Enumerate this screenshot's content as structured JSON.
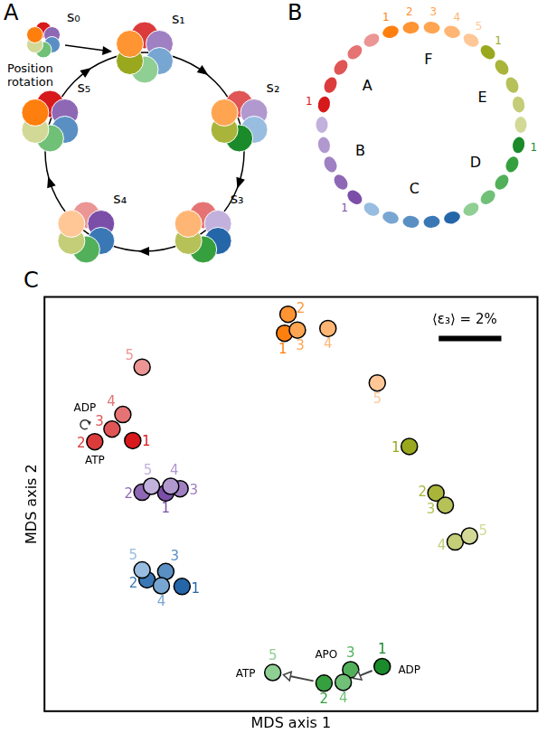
{
  "panels": {
    "A": {
      "label": "A",
      "states": [
        "s₀",
        "s₁",
        "s₂",
        "s₃",
        "s₄",
        "s₅"
      ],
      "caption": "Position rotation"
    },
    "B": {
      "label": "B",
      "groups": [
        {
          "letter": "A",
          "numbers": [
            "1"
          ]
        },
        {
          "letter": "B",
          "numbers": [
            "1"
          ]
        },
        {
          "letter": "C",
          "numbers": []
        },
        {
          "letter": "D",
          "numbers": [
            "1"
          ]
        },
        {
          "letter": "E",
          "numbers": [
            "1"
          ]
        },
        {
          "letter": "F",
          "numbers": [
            "1",
            "2",
            "3",
            "4",
            "5"
          ]
        }
      ]
    },
    "C": {
      "label": "C"
    }
  },
  "chart_data": {
    "type": "scatter",
    "x_label": "MDS axis 1",
    "y_label": "MDS axis 2",
    "xlim": [
      0,
      100
    ],
    "ylim": [
      -5,
      100
    ],
    "tick_labels": false,
    "grid": false,
    "marker": "circle",
    "scale_bar": {
      "label": "⟨ε₃⟩ = 2%",
      "length": 12.7
    },
    "series": [
      {
        "colors": [
          "#d7191c",
          "#dc3b3b",
          "#e05555",
          "#e57373",
          "#eb9595"
        ],
        "points": [
          {
            "x": 17.9,
            "y": 63.6,
            "label": "1"
          },
          {
            "x": 10.2,
            "y": 63.3,
            "label": "2",
            "state": "ATP"
          },
          {
            "x": 13.7,
            "y": 66.5,
            "label": "3",
            "state": "ADP"
          },
          {
            "x": 15.9,
            "y": 70.2,
            "label": "4"
          },
          {
            "x": 19.8,
            "y": 82.2,
            "label": "5"
          }
        ]
      },
      {
        "colors": [
          "#7b4fa8",
          "#8e68b5",
          "#9f80c2",
          "#b199cf",
          "#c2b1dc"
        ],
        "points": [
          {
            "x": 24.6,
            "y": 50.3,
            "label": "1"
          },
          {
            "x": 19.8,
            "y": 50.5,
            "label": "2"
          },
          {
            "x": 27.5,
            "y": 51.4,
            "label": "3"
          },
          {
            "x": 25.6,
            "y": 52.0,
            "label": "4"
          },
          {
            "x": 21.7,
            "y": 52.0,
            "label": "5"
          }
        ]
      },
      {
        "colors": [
          "#2566a8",
          "#3a78b5",
          "#5a8fc4",
          "#78a6d2",
          "#98bde0"
        ],
        "points": [
          {
            "x": 27.9,
            "y": 26.6,
            "label": "1"
          },
          {
            "x": 20.8,
            "y": 28.3,
            "label": "2"
          },
          {
            "x": 24.6,
            "y": 30.4,
            "label": "3"
          },
          {
            "x": 23.7,
            "y": 26.8,
            "label": "4"
          },
          {
            "x": 19.8,
            "y": 30.8,
            "label": "5"
          }
        ]
      },
      {
        "colors": [
          "#1b8a2a",
          "#36a03f",
          "#52b05a",
          "#70c077",
          "#8fcf94"
        ],
        "points": [
          {
            "x": 68.5,
            "y": 6.3,
            "label": "1",
            "state": "ADP"
          },
          {
            "x": 56.7,
            "y": 2.1,
            "label": "2"
          },
          {
            "x": 62.1,
            "y": 5.5,
            "label": "3",
            "state": "APO"
          },
          {
            "x": 60.6,
            "y": 2.3,
            "label": "4"
          },
          {
            "x": 46.3,
            "y": 4.8,
            "label": "5",
            "state": "ATP"
          }
        ]
      },
      {
        "colors": [
          "#9aa81e",
          "#a8b53a",
          "#b6c158",
          "#c4cd77",
          "#d2d996"
        ],
        "points": [
          {
            "x": 74.0,
            "y": 62.1,
            "label": "1"
          },
          {
            "x": 79.4,
            "y": 50.3,
            "label": "2"
          },
          {
            "x": 81.3,
            "y": 47.2,
            "label": "3"
          },
          {
            "x": 83.3,
            "y": 37.9,
            "label": "4"
          },
          {
            "x": 86.2,
            "y": 39.4,
            "label": "5"
          }
        ]
      },
      {
        "colors": [
          "#ff7f0e",
          "#ff9433",
          "#ffa552",
          "#ffb674",
          "#ffc796"
        ],
        "points": [
          {
            "x": 48.7,
            "y": 90.8,
            "label": "1"
          },
          {
            "x": 49.4,
            "y": 95.6,
            "label": "2"
          },
          {
            "x": 51.3,
            "y": 91.6,
            "label": "3"
          },
          {
            "x": 57.5,
            "y": 92.0,
            "label": "4"
          },
          {
            "x": 67.5,
            "y": 78.2,
            "label": "5"
          }
        ]
      }
    ]
  }
}
